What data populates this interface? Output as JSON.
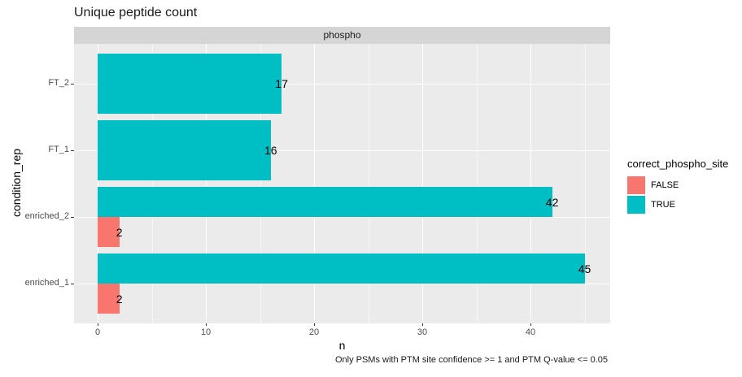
{
  "title": "Unique peptide count",
  "facet": {
    "label": "phospho"
  },
  "caption": "Only PSMs with PTM site confidence >= 1 and PTM Q-value <= 0.05",
  "axes": {
    "x": {
      "title": "n",
      "major_ticks": [
        0,
        10,
        20,
        30,
        40
      ],
      "minor_ticks": [
        5,
        15,
        25,
        35,
        45
      ],
      "range": [
        -2.25,
        47.25
      ]
    },
    "y": {
      "title": "condition_rep",
      "categories": [
        "FT_2",
        "FT_1",
        "enriched_2",
        "enriched_1"
      ]
    }
  },
  "legend": {
    "title": "correct_phospho_site",
    "items": [
      {
        "label": "FALSE",
        "color": "#F8766D"
      },
      {
        "label": "TRUE",
        "color": "#00BFC4"
      }
    ]
  },
  "chart_data": {
    "type": "bar",
    "orientation": "horizontal",
    "title": "Unique peptide count",
    "facet": "phospho",
    "xlabel": "n",
    "ylabel": "condition_rep",
    "xlim": [
      -2.25,
      47.25
    ],
    "grid": "on",
    "legend_title": "correct_phospho_site",
    "legend_position": "right",
    "bar_value_labels": true,
    "categories": [
      "FT_2",
      "FT_1",
      "enriched_2",
      "enriched_1"
    ],
    "series": [
      {
        "name": "TRUE",
        "color": "#00BFC4",
        "values": [
          17,
          16,
          42,
          45
        ]
      },
      {
        "name": "FALSE",
        "color": "#F8766D",
        "values": [
          null,
          null,
          2,
          2
        ]
      }
    ]
  },
  "colors": {
    "panel_bg": "#EBEBEB",
    "strip_bg": "#D5D5D5",
    "grid": "#FFFFFF",
    "axis_text": "#4D4D4D",
    "true_fill": "#00BFC4",
    "false_fill": "#F8766D"
  }
}
